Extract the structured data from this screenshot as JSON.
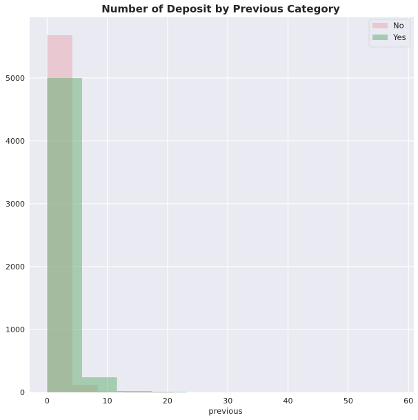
{
  "chart_data": {
    "type": "bar",
    "title": "Number of Deposit by Previous Category",
    "xlabel": "previous",
    "ylabel": "",
    "xlim": [
      -2.9,
      60.9
    ],
    "ylim": [
      0,
      5965
    ],
    "x_ticks": [
      0,
      10,
      20,
      30,
      40,
      50,
      60
    ],
    "y_ticks": [
      0,
      1000,
      2000,
      3000,
      4000,
      5000
    ],
    "grid": true,
    "legend_position": "top-right",
    "series": [
      {
        "name": "No",
        "color": "#e8a0a8",
        "opacity": 0.45,
        "bins": [
          {
            "x0": 0,
            "x1": 4.2,
            "count": 5680
          },
          {
            "x0": 4.2,
            "x1": 8.4,
            "count": 120
          },
          {
            "x0": 8.4,
            "x1": 12.6,
            "count": 14
          },
          {
            "x0": 12.6,
            "x1": 16.8,
            "count": 4
          },
          {
            "x0": 16.8,
            "x1": 21.0,
            "count": 2
          }
        ]
      },
      {
        "name": "Yes",
        "color": "#5fae6e",
        "opacity": 0.5,
        "bins": [
          {
            "x0": 0,
            "x1": 5.8,
            "count": 5000
          },
          {
            "x0": 5.8,
            "x1": 11.6,
            "count": 240
          },
          {
            "x0": 11.6,
            "x1": 17.4,
            "count": 22
          },
          {
            "x0": 17.4,
            "x1": 23.2,
            "count": 6
          }
        ]
      }
    ]
  }
}
